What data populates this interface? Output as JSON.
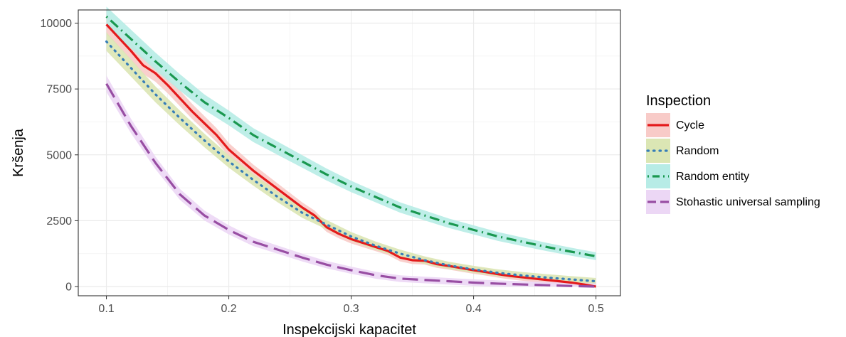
{
  "chart_data": {
    "type": "line",
    "xlabel": "Inspekcijski kapacitet",
    "ylabel": "Kršenja",
    "xlim": [
      0.077,
      0.52
    ],
    "ylim": [
      -350,
      10500
    ],
    "xticks": [
      0.1,
      0.2,
      0.3,
      0.4,
      0.5
    ],
    "xtick_labels": [
      "0.1",
      "0.2",
      "0.3",
      "0.4",
      "0.5"
    ],
    "yticks": [
      0,
      2500,
      5000,
      7500,
      10000
    ],
    "ytick_labels": [
      "0",
      "2500",
      "5000",
      "7500",
      "10000"
    ],
    "grid": true,
    "legend": {
      "title": "Inspection",
      "position": "right"
    },
    "series": [
      {
        "name": "Cycle",
        "color": "#e41a1c",
        "dash": "solid",
        "x": [
          0.1,
          0.11,
          0.12,
          0.13,
          0.14,
          0.15,
          0.16,
          0.17,
          0.18,
          0.19,
          0.2,
          0.21,
          0.22,
          0.23,
          0.24,
          0.25,
          0.26,
          0.27,
          0.28,
          0.29,
          0.3,
          0.31,
          0.32,
          0.33,
          0.34,
          0.35,
          0.36,
          0.37,
          0.38,
          0.39,
          0.4,
          0.41,
          0.42,
          0.43,
          0.44,
          0.45,
          0.46,
          0.47,
          0.48,
          0.49,
          0.5
        ],
        "y": [
          9950,
          9450,
          8950,
          8400,
          8100,
          7650,
          7150,
          6650,
          6200,
          5750,
          5200,
          4800,
          4400,
          4050,
          3700,
          3350,
          3000,
          2700,
          2250,
          2000,
          1800,
          1650,
          1500,
          1350,
          1100,
          1000,
          980,
          850,
          780,
          700,
          620,
          550,
          470,
          400,
          350,
          300,
          250,
          200,
          150,
          80,
          0
        ]
      },
      {
        "name": "Random",
        "color": "#377eb8",
        "dash": "dotted",
        "x": [
          0.1,
          0.12,
          0.14,
          0.16,
          0.18,
          0.2,
          0.22,
          0.24,
          0.26,
          0.28,
          0.3,
          0.32,
          0.34,
          0.36,
          0.38,
          0.4,
          0.42,
          0.44,
          0.46,
          0.48,
          0.5
        ],
        "y": [
          9300,
          8300,
          7300,
          6400,
          5550,
          4750,
          4050,
          3400,
          2800,
          2350,
          1900,
          1550,
          1250,
          1000,
          800,
          650,
          520,
          420,
          340,
          270,
          200
        ]
      },
      {
        "name": "Random entity",
        "color": "#1a9850",
        "dash": "dotdash",
        "x": [
          0.1,
          0.12,
          0.14,
          0.16,
          0.18,
          0.2,
          0.22,
          0.24,
          0.26,
          0.28,
          0.3,
          0.32,
          0.34,
          0.36,
          0.38,
          0.4,
          0.42,
          0.44,
          0.46,
          0.48,
          0.5
        ],
        "y": [
          10250,
          9400,
          8550,
          7750,
          7000,
          6400,
          5750,
          5250,
          4750,
          4250,
          3800,
          3400,
          3000,
          2700,
          2400,
          2150,
          1900,
          1700,
          1500,
          1320,
          1150
        ]
      },
      {
        "name": "Stohastic universal sampling",
        "color": "#984ea3",
        "dash": "longdash",
        "x": [
          0.1,
          0.12,
          0.14,
          0.16,
          0.18,
          0.2,
          0.22,
          0.24,
          0.26,
          0.28,
          0.3,
          0.32,
          0.34,
          0.36,
          0.38,
          0.4,
          0.42,
          0.44,
          0.46,
          0.48,
          0.5
        ],
        "y": [
          7700,
          6100,
          4700,
          3500,
          2700,
          2150,
          1700,
          1400,
          1100,
          830,
          620,
          430,
          300,
          250,
          200,
          150,
          110,
          80,
          50,
          20,
          0
        ]
      }
    ],
    "band_colors": {
      "Cycle": "#f8cbc8",
      "Random": "#dbe6b4",
      "Random entity": "#b7ece6",
      "Stohastic universal sampling": "#ecd7f5"
    }
  }
}
